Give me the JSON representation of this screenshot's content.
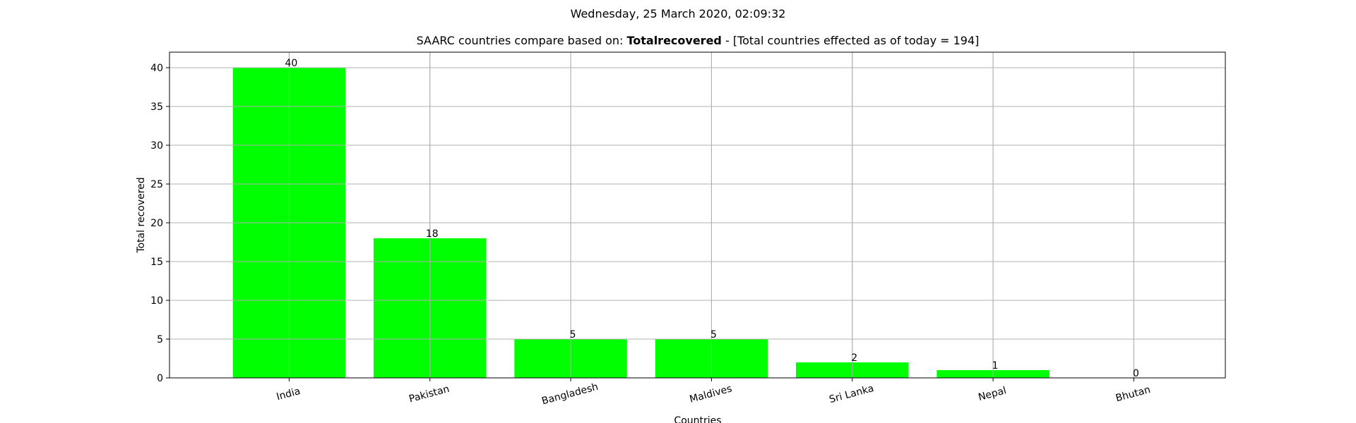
{
  "chart_data": {
    "type": "bar",
    "suptitle": "Wednesday, 25 March 2020, 02:09:32",
    "title_prefix": "SAARC countries compare based on: ",
    "title_bold": "Totalrecovered",
    "title_suffix": " - [Total countries effected as of today = 194]",
    "xlabel": "Countries",
    "ylabel": "Total recovered",
    "categories": [
      "India",
      "Pakistan",
      "Bangladesh",
      "Maldives",
      "Sri Lanka",
      "Nepal",
      "Bhutan"
    ],
    "values": [
      40,
      18,
      5,
      5,
      2,
      1,
      0
    ],
    "data_labels": [
      "40",
      "18",
      "5",
      "5",
      "2",
      "1",
      "0"
    ],
    "ylim": [
      0,
      42
    ],
    "yticks": [
      0,
      5,
      10,
      15,
      20,
      25,
      30,
      35,
      40
    ],
    "grid": true,
    "bar_color": "#00ff00",
    "grid_color": "#b0b0b0"
  }
}
